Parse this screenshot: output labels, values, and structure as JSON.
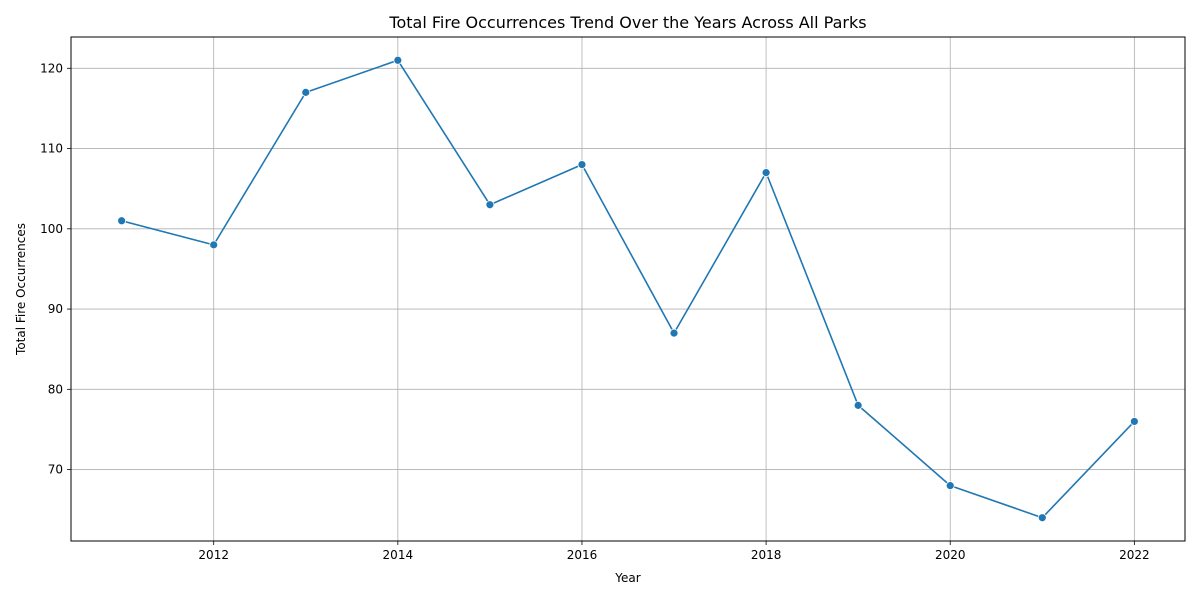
{
  "chart_data": {
    "type": "line",
    "title": "Total Fire Occurrences Trend Over the Years Across All Parks",
    "xlabel": "Year",
    "ylabel": "Total Fire Occurrences",
    "x": [
      2011,
      2012,
      2013,
      2014,
      2015,
      2016,
      2017,
      2018,
      2019,
      2020,
      2021,
      2022
    ],
    "series": [
      {
        "values": [
          101,
          98,
          117,
          121,
          103,
          108,
          87,
          107,
          78,
          68,
          64,
          76
        ]
      }
    ],
    "xlim": [
      2010.45,
      2022.55
    ],
    "ylim": [
      61.1,
      123.9
    ],
    "x_ticks": [
      2012,
      2014,
      2016,
      2018,
      2020,
      2022
    ],
    "y_ticks": [
      70,
      80,
      90,
      100,
      110,
      120
    ],
    "grid": true,
    "line_color": "#1f77b4"
  }
}
